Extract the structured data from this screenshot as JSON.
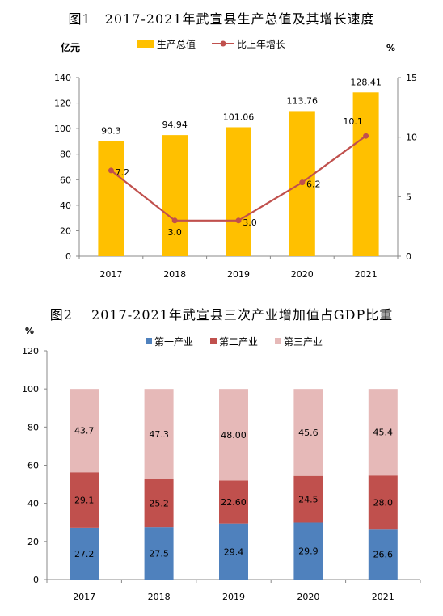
{
  "figures": [
    {
      "title": "图1　2017-2021年武宣县生产总值及其增长速度"
    },
    {
      "title": "图2　 2017-2021年武宣县三次产业增加值占GDP比重"
    }
  ],
  "chart_data": [
    {
      "type": "bar",
      "title": "图1　2017-2021年武宣县生产总值及其增长速度",
      "categories": [
        "2017",
        "2018",
        "2019",
        "2020",
        "2021"
      ],
      "ylabel": "亿元",
      "ylabel_right": "%",
      "ylim": [
        0,
        140
      ],
      "yticks": [
        "0",
        "20",
        "40",
        "60",
        "80",
        "100",
        "120",
        "140"
      ],
      "ylim_right": [
        0,
        15
      ],
      "yticks_right": [
        "0",
        "5",
        "10",
        "15"
      ],
      "legend_position": "top",
      "series": [
        {
          "name": "生产总值",
          "type": "bar",
          "axis": "left",
          "color": "#FFC000",
          "values": [
            90.3,
            94.94,
            101.06,
            113.76,
            128.41
          ],
          "labels": [
            "90.3",
            "94.94",
            "101.06",
            "113.76",
            "128.41"
          ]
        },
        {
          "name": "比上年增长",
          "type": "line",
          "axis": "right",
          "color": "#C0504D",
          "values": [
            7.2,
            3.0,
            3.0,
            6.2,
            10.1
          ],
          "labels": [
            "7.2",
            "3.0",
            "3.0",
            "6.2",
            "10.1"
          ]
        }
      ]
    },
    {
      "type": "bar",
      "stacked": true,
      "title": "图2　 2017-2021年武宣县三次产业增加值占GDP比重",
      "categories": [
        "2017",
        "2018",
        "2019",
        "2020",
        "2021"
      ],
      "ylabel": "%",
      "ylim": [
        0,
        120
      ],
      "yticks": [
        "0",
        "20",
        "40",
        "60",
        "80",
        "100",
        "120"
      ],
      "legend_position": "top",
      "series": [
        {
          "name": "第一产业",
          "color": "#4F81BD",
          "values": [
            27.2,
            27.5,
            29.4,
            29.9,
            26.6
          ],
          "labels": [
            "27.2",
            "27.5",
            "29.4",
            "29.9",
            "26.6"
          ]
        },
        {
          "name": "第二产业",
          "color": "#C0504D",
          "values": [
            29.1,
            25.2,
            22.6,
            24.5,
            28.0
          ],
          "labels": [
            "29.1",
            "25.2",
            "22.60",
            "24.5",
            "28.0"
          ]
        },
        {
          "name": "第三产业",
          "color": "#E6B9B8",
          "values": [
            43.7,
            47.3,
            48.0,
            45.6,
            45.4
          ],
          "labels": [
            "43.7",
            "47.3",
            "48.00",
            "45.6",
            "45.4"
          ]
        }
      ]
    }
  ]
}
